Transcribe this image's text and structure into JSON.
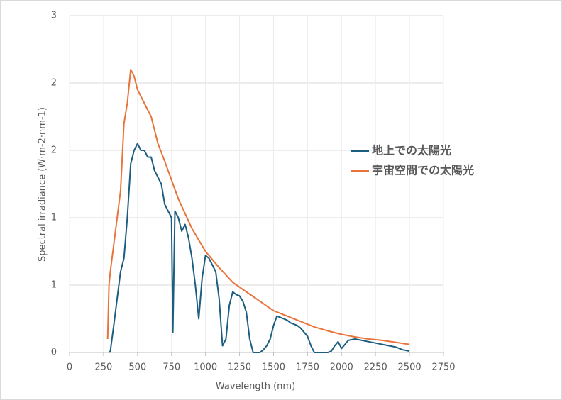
{
  "chart_data": {
    "type": "line",
    "x_label": "Wavelength (nm)",
    "y_label": "Spectral irradiance (W·m-2·nm-1)",
    "xlim": [
      0,
      2750
    ],
    "xticks": [
      0,
      250,
      500,
      750,
      1000,
      1250,
      1500,
      1750,
      2000,
      2250,
      2500,
      2750
    ],
    "ylim": [
      0,
      2.5
    ],
    "yticks": [
      0,
      {
        "value": 0.5,
        "label": "1"
      },
      {
        "value": 1,
        "label": "1"
      },
      {
        "value": 1.5,
        "label": "2"
      },
      {
        "value": 2,
        "label": "2"
      },
      {
        "value": 2.5,
        "label": "3"
      }
    ],
    "grid": true,
    "legend": "right",
    "series": [
      {
        "name": "地上での太陽光",
        "color": "#1b5e80",
        "x": [
          290,
          300,
          325,
          350,
          375,
          400,
          425,
          450,
          475,
          500,
          525,
          550,
          575,
          600,
          625,
          650,
          675,
          700,
          725,
          750,
          760,
          775,
          800,
          825,
          850,
          875,
          900,
          925,
          950,
          975,
          1000,
          1025,
          1050,
          1075,
          1100,
          1125,
          1150,
          1175,
          1200,
          1225,
          1250,
          1275,
          1300,
          1325,
          1350,
          1375,
          1400,
          1425,
          1450,
          1475,
          1500,
          1525,
          1550,
          1575,
          1600,
          1625,
          1650,
          1675,
          1700,
          1725,
          1750,
          1775,
          1800,
          1850,
          1900,
          1925,
          1950,
          1975,
          2000,
          2025,
          2050,
          2100,
          2150,
          2200,
          2250,
          2300,
          2350,
          2400,
          2450,
          2500
        ],
        "values": [
          0,
          0.01,
          0.2,
          0.4,
          0.6,
          0.7,
          1.0,
          1.4,
          1.5,
          1.55,
          1.5,
          1.5,
          1.45,
          1.45,
          1.35,
          1.3,
          1.25,
          1.1,
          1.05,
          1.0,
          0.15,
          1.05,
          1.0,
          0.9,
          0.95,
          0.85,
          0.7,
          0.5,
          0.25,
          0.55,
          0.72,
          0.7,
          0.65,
          0.6,
          0.4,
          0.05,
          0.1,
          0.35,
          0.45,
          0.43,
          0.42,
          0.38,
          0.3,
          0.1,
          0,
          0,
          0,
          0.02,
          0.05,
          0.1,
          0.2,
          0.27,
          0.26,
          0.25,
          0.24,
          0.22,
          0.21,
          0.2,
          0.18,
          0.15,
          0.12,
          0.05,
          0,
          0,
          0,
          0.01,
          0.05,
          0.08,
          0.03,
          0.06,
          0.09,
          0.1,
          0.09,
          0.08,
          0.07,
          0.06,
          0.05,
          0.04,
          0.02,
          0.01
        ]
      },
      {
        "name": "宇宙空間での太陽光",
        "color": "#e8743b",
        "x": [
          280,
          290,
          300,
          325,
          350,
          375,
          400,
          425,
          450,
          475,
          500,
          550,
          600,
          650,
          700,
          750,
          800,
          900,
          1000,
          1100,
          1200,
          1300,
          1400,
          1500,
          1600,
          1700,
          1800,
          1900,
          2000,
          2100,
          2200,
          2300,
          2400,
          2500
        ],
        "values": [
          0.1,
          0.5,
          0.6,
          0.8,
          1.0,
          1.2,
          1.7,
          1.85,
          2.1,
          2.05,
          1.95,
          1.85,
          1.75,
          1.55,
          1.42,
          1.28,
          1.14,
          0.92,
          0.75,
          0.63,
          0.52,
          0.45,
          0.38,
          0.31,
          0.27,
          0.23,
          0.19,
          0.16,
          0.135,
          0.115,
          0.1,
          0.09,
          0.075,
          0.06
        ]
      }
    ]
  }
}
